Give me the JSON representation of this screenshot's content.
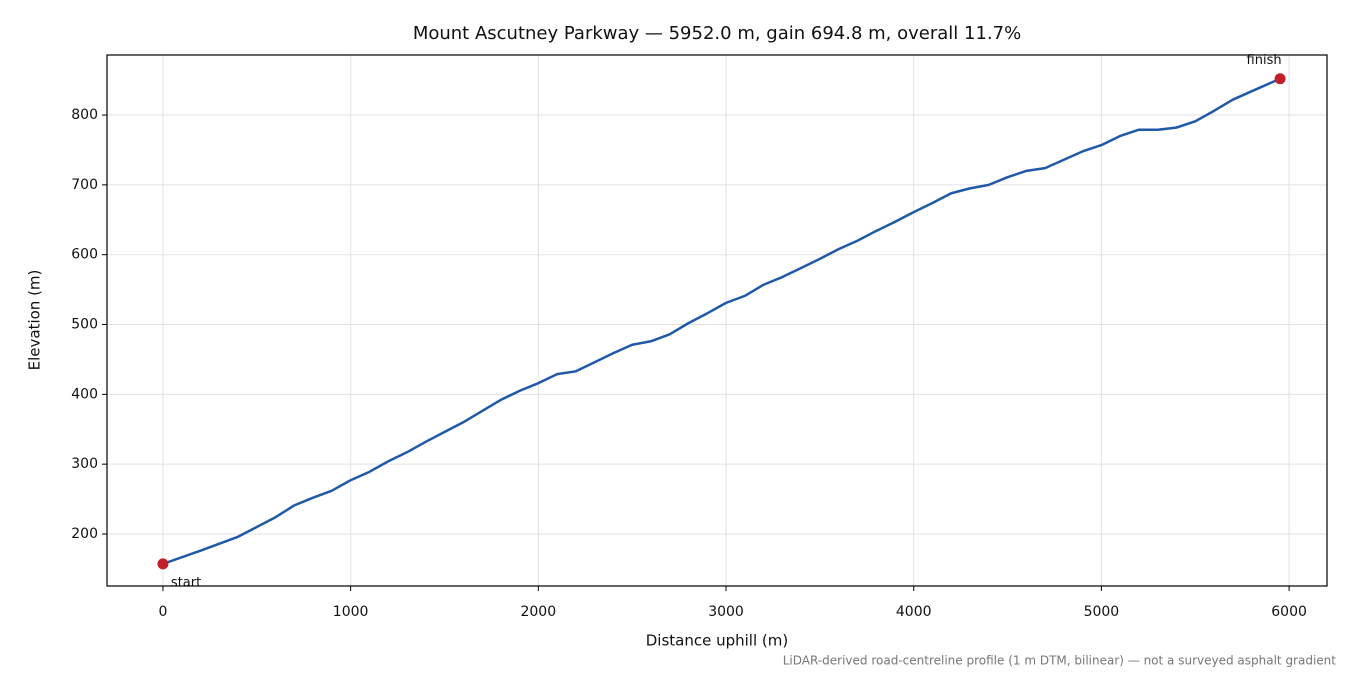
{
  "chart_data": {
    "type": "line",
    "title": "Mount Ascutney Parkway — 5952.0 m, gain 694.8 m, overall 11.7%",
    "x_label": "Distance uphill (m)",
    "y_label": "Elevation (m)",
    "footnote": "LiDAR-derived road-centreline profile (1 m DTM, bilinear) — not a surveyed asphalt gradient",
    "color": "#2059a8",
    "x": [
      0,
      200,
      400,
      500,
      600,
      700,
      800,
      900,
      1000,
      1100,
      1200,
      1300,
      1400,
      1500,
      1600,
      1700,
      1800,
      1900,
      2000,
      2100,
      2200,
      2300,
      2400,
      2500,
      2600,
      2700,
      2800,
      2900,
      3000,
      3100,
      3200,
      3300,
      3400,
      3500,
      3600,
      3700,
      3800,
      3900,
      4000,
      4100,
      4200,
      4300,
      4400,
      4500,
      4600,
      4700,
      4800,
      4900,
      5000,
      5100,
      5200,
      5300,
      5400,
      5500,
      5600,
      5700,
      5800,
      5952
    ],
    "values": [
      157.2,
      176,
      196,
      210,
      224,
      241,
      252,
      262,
      277,
      289,
      304,
      317,
      332,
      346,
      360,
      376,
      392,
      405,
      416,
      429,
      433,
      446,
      459,
      471,
      476,
      486,
      502,
      516,
      531,
      541,
      557,
      568,
      581,
      594,
      608,
      620,
      634,
      647,
      661,
      674,
      688,
      695,
      700,
      711,
      720,
      724,
      736,
      748,
      757,
      770,
      779,
      779,
      782,
      791,
      806,
      822,
      834,
      852
    ],
    "markers": {
      "color": "#c0202a",
      "x": [
        0,
        5952
      ],
      "values": [
        157.2,
        852
      ],
      "labels": [
        "start",
        "finish"
      ]
    },
    "xlim": [
      -298,
      6202
    ],
    "ylim": [
      125.5,
      886
    ],
    "xticks": [
      0,
      1000,
      2000,
      3000,
      4000,
      5000,
      6000
    ],
    "yticks": [
      200,
      300,
      400,
      500,
      600,
      700,
      800
    ],
    "grid": true
  }
}
